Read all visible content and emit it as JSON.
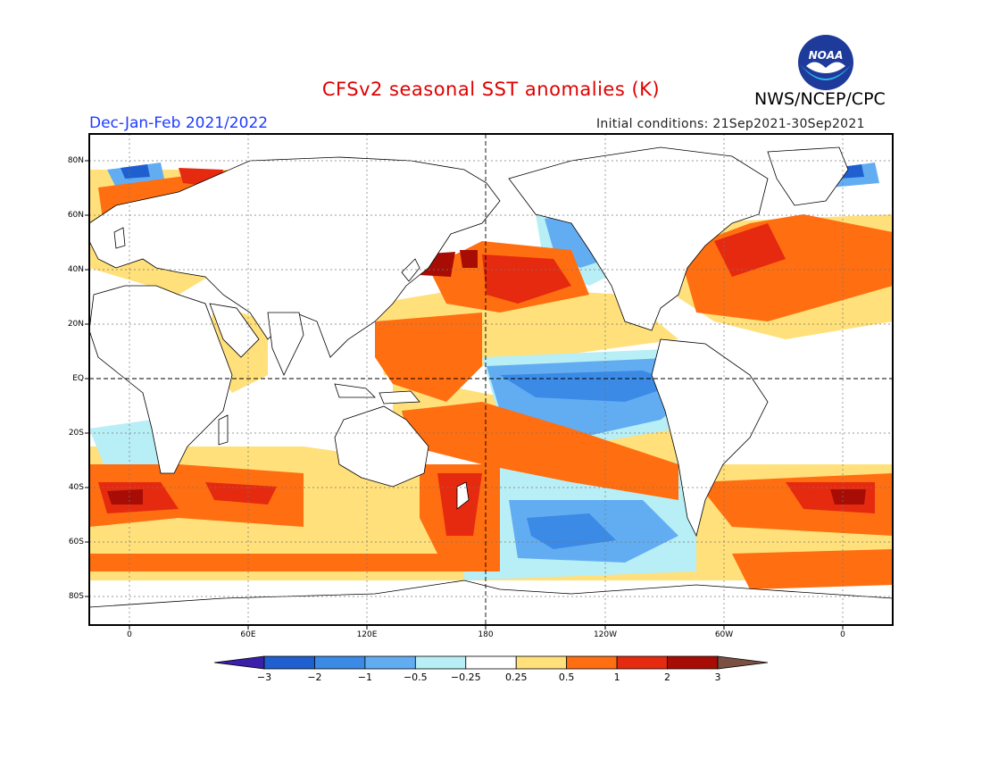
{
  "title": "CFSv2 seasonal SST anomalies (K)",
  "agency": "NWS/NCEP/CPC",
  "logo_text": "NOAA",
  "season": "Dec-Jan-Feb 2021/2022",
  "initial_conditions": "Initial conditions: 21Sep2021-30Sep2021",
  "lat_labels": [
    "80N",
    "60N",
    "40N",
    "20N",
    "EQ",
    "20S",
    "40S",
    "60S",
    "80S"
  ],
  "lon_labels": [
    "0",
    "60E",
    "120E",
    "180",
    "120W",
    "60W",
    "0"
  ],
  "colorbar": {
    "ticks": [
      "-3",
      "-2",
      "-1",
      "-0.5",
      "-0.25",
      "0.25",
      "0.5",
      "1",
      "2",
      "3"
    ],
    "colors": [
      "#3a1fa8",
      "#1f5fcf",
      "#3a8ae6",
      "#62adf2",
      "#b8eef6",
      "#ffffff",
      "#ffe07a",
      "#ff6e10",
      "#e52a10",
      "#a70d05",
      "#7a5043"
    ]
  }
}
